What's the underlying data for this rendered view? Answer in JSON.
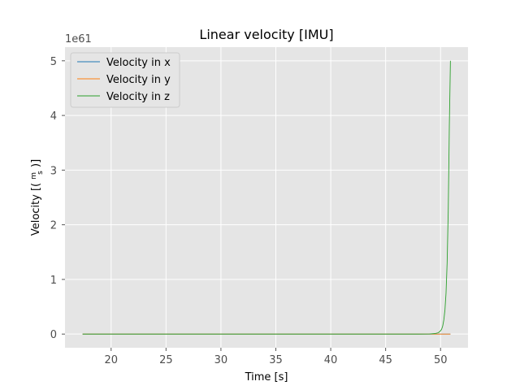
{
  "chart_data": {
    "type": "line",
    "title": "Linear velocity [IMU]",
    "xlabel": "Time [s]",
    "ylabel": "Velocity [(m/s)]",
    "ylabel_parts": {
      "prefix": "Velocity [(",
      "num": "m",
      "den": "s",
      "suffix": ")]"
    },
    "y_offset_text": "1e61",
    "xlim": [
      15.8,
      52.5
    ],
    "ylim": [
      -0.25,
      5.25
    ],
    "xticks": [
      20,
      25,
      30,
      35,
      40,
      45,
      50
    ],
    "yticks": [
      0,
      1,
      2,
      3,
      4,
      5
    ],
    "grid": true,
    "legend_position": "upper-left",
    "series": [
      {
        "name": "Velocity in x",
        "color": "#1f77b4",
        "x": [
          17.4,
          50.9
        ],
        "y": [
          0,
          0
        ]
      },
      {
        "name": "Velocity in y",
        "color": "#ff7f0e",
        "x": [
          17.4,
          50.9
        ],
        "y": [
          0,
          0
        ]
      },
      {
        "name": "Velocity in z",
        "color": "#2ca02c",
        "x": [
          17.4,
          30.0,
          40.0,
          45.0,
          48.0,
          49.0,
          49.5,
          49.8,
          50.0,
          50.1,
          50.2,
          50.3,
          50.4,
          50.5,
          50.6,
          50.7,
          50.75,
          50.8,
          50.85,
          50.9
        ],
        "y": [
          0,
          0,
          0,
          0,
          0.0,
          0.002,
          0.01,
          0.025,
          0.06,
          0.09,
          0.15,
          0.26,
          0.44,
          0.75,
          1.3,
          2.25,
          3.0,
          3.8,
          4.4,
          5.0
        ]
      }
    ]
  }
}
